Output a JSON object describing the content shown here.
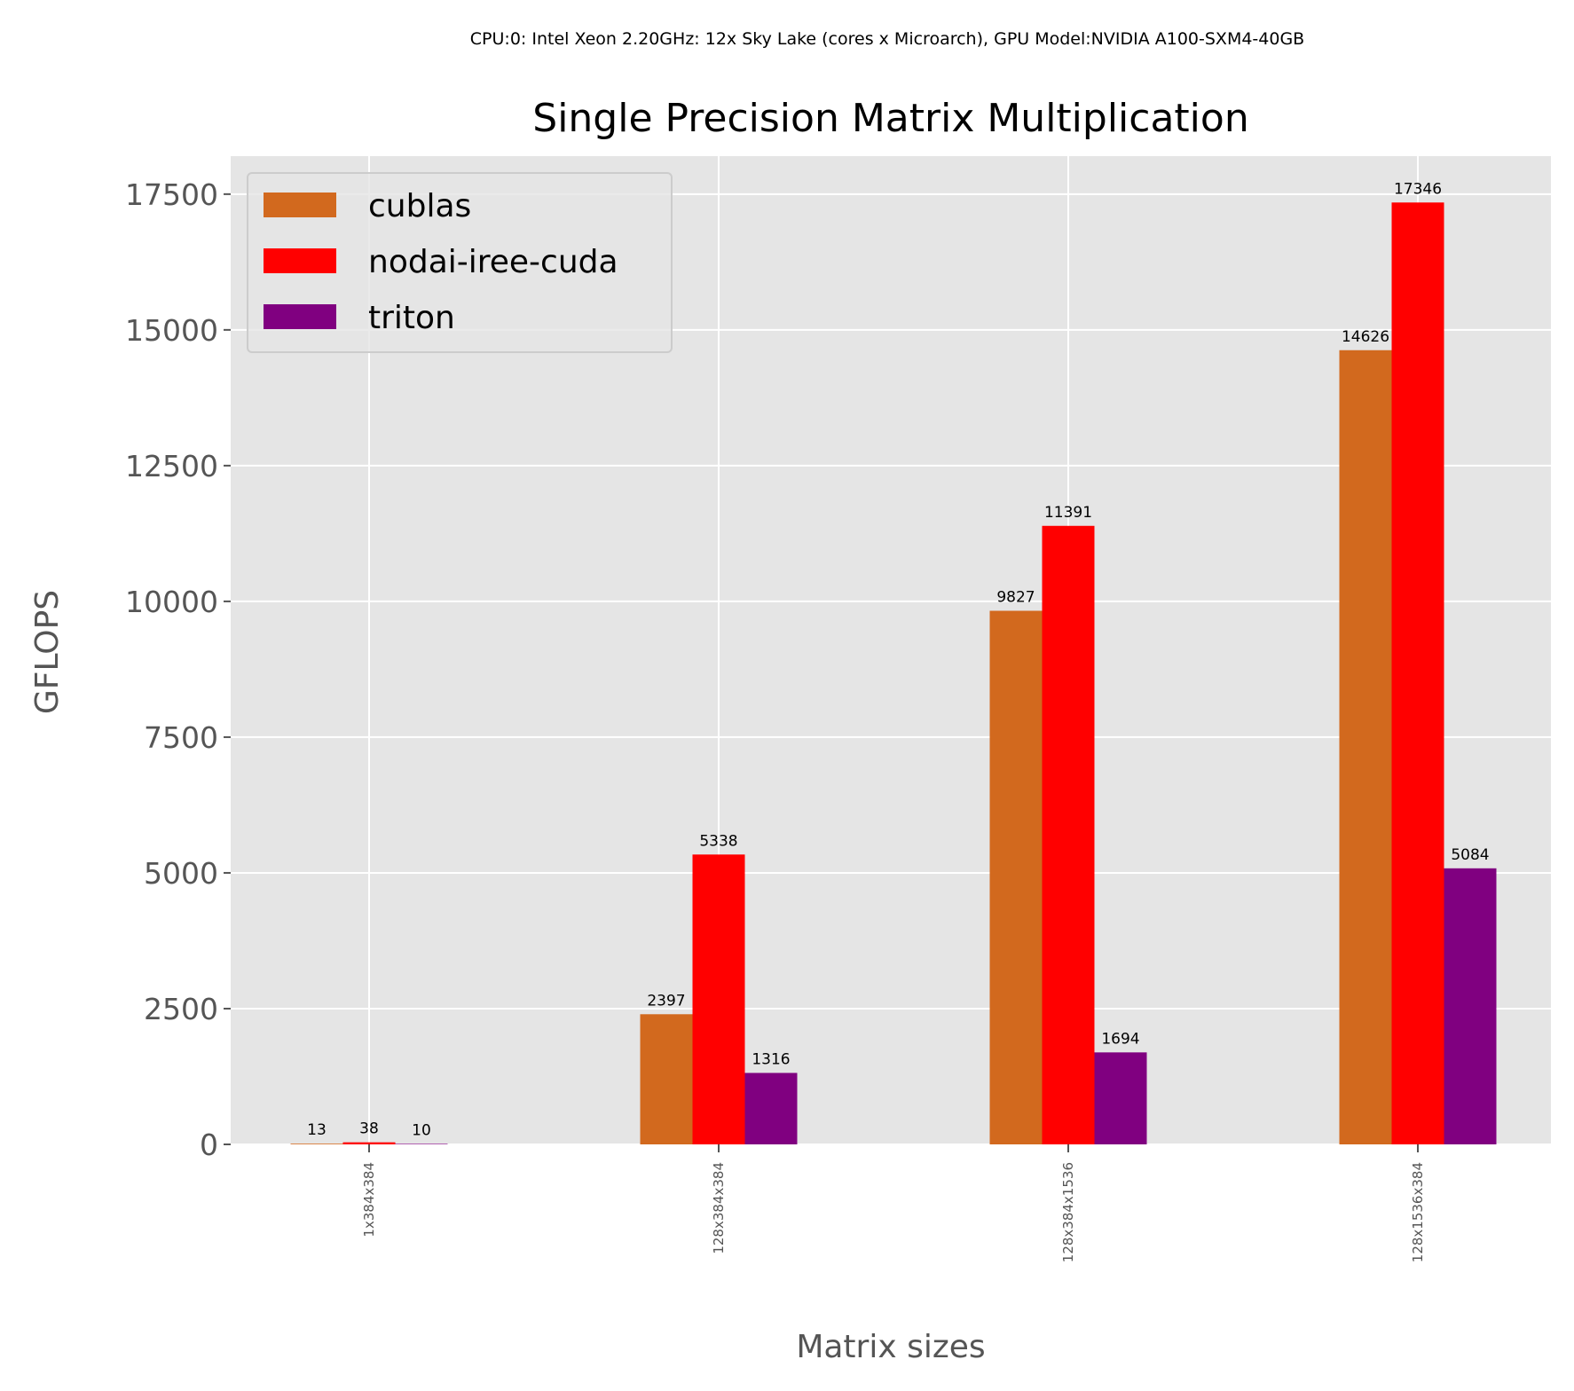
{
  "chart_data": {
    "type": "bar",
    "suptitle": "CPU:0: Intel Xeon 2.20GHz: 12x Sky Lake (cores x Microarch), GPU Model:NVIDIA A100-SXM4-40GB",
    "title": "Single Precision Matrix Multiplication",
    "xlabel": "Matrix sizes",
    "ylabel": "GFLOPS",
    "ylim": [
      0,
      18200
    ],
    "yticks": [
      0,
      2500,
      5000,
      7500,
      10000,
      12500,
      15000,
      17500
    ],
    "grid": true,
    "legend_position": "top-left",
    "categories": [
      "1x384x384",
      "128x384x384",
      "128x384x1536",
      "128x1536x384"
    ],
    "series": [
      {
        "name": "cublas",
        "color": "#D2691E",
        "values": [
          13,
          2397,
          9827,
          14626
        ]
      },
      {
        "name": "nodai-iree-cuda",
        "color": "#FF0000",
        "values": [
          38,
          5338,
          11391,
          17346
        ]
      },
      {
        "name": "triton",
        "color": "#800080",
        "values": [
          10,
          1316,
          1694,
          5084
        ]
      }
    ]
  }
}
